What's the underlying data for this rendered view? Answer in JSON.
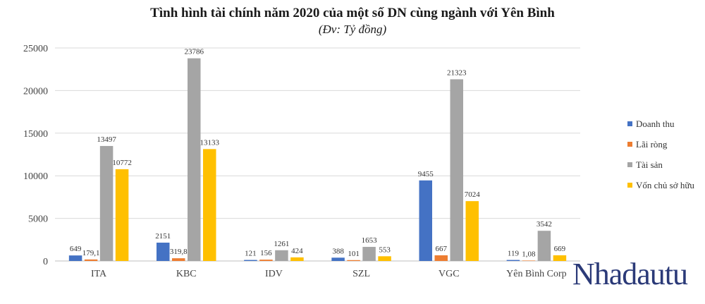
{
  "chart_data": {
    "type": "bar",
    "title": "Tình hình tài chính năm 2020 của một số DN cùng ngành với Yên Bình",
    "subtitle": "(Đv: Tỷ đồng)",
    "categories": [
      "ITA",
      "KBC",
      "IDV",
      "SZL",
      "VGC",
      "Yên Bình Corp"
    ],
    "ylim": [
      0,
      25000
    ],
    "yticks": [
      0,
      5000,
      10000,
      15000,
      20000,
      25000
    ],
    "grid": true,
    "legend_position": "right",
    "series": [
      {
        "name": "Doanh thu",
        "color": "#4472c4",
        "values": [
          649,
          2151,
          121,
          388,
          9455,
          119
        ],
        "labels": [
          "649",
          "2151",
          "121",
          "388",
          "9455",
          "119"
        ]
      },
      {
        "name": "Lãi ròng",
        "color": "#ed7d31",
        "values": [
          179.1,
          319.8,
          156,
          101,
          667,
          1.08
        ],
        "labels": [
          "179,1",
          "319,8",
          "156",
          "101",
          "667",
          "1,08"
        ]
      },
      {
        "name": "Tài sản",
        "color": "#a5a5a5",
        "values": [
          13497,
          23786,
          1261,
          1653,
          21323,
          3542
        ],
        "labels": [
          "13497",
          "23786",
          "1261",
          "1653",
          "21323",
          "3542"
        ]
      },
      {
        "name": "Vốn chủ sở hữu",
        "color": "#ffc000",
        "values": [
          10772,
          13133,
          424,
          553,
          7024,
          669
        ],
        "labels": [
          "10772",
          "13133",
          "424",
          "553",
          "7024",
          "669"
        ]
      }
    ]
  },
  "watermark": {
    "text": "Nhadautu",
    "color": "#2b3a78"
  }
}
